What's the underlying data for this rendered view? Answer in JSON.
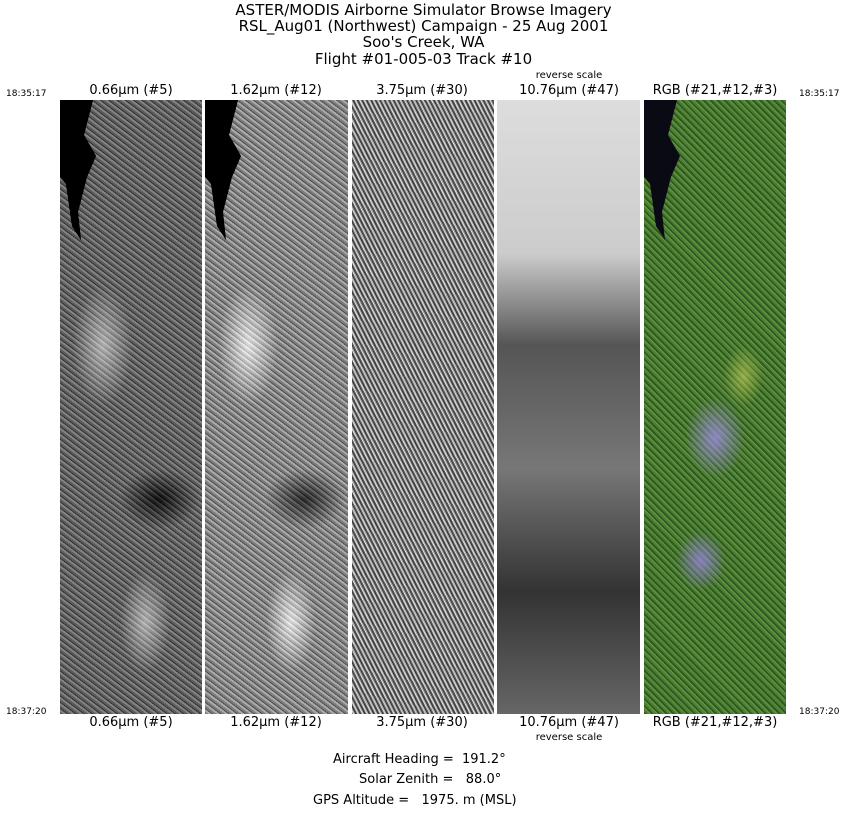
{
  "title_lines": [
    "ASTER/MODIS Airborne Simulator Browse Imagery",
    "RSL_Aug01 (Northwest) Campaign - 25 Aug 2001",
    "Soo's Creek, WA",
    "Flight #01-005-03 Track #10"
  ],
  "time_start": "18:35:17",
  "time_end": "18:37:20",
  "reverse_scale_label": "reverse scale",
  "bands": [
    {
      "label": "0.66µm (#5)"
    },
    {
      "label": "1.62µm (#12)"
    },
    {
      "label": "3.75µm (#30)"
    },
    {
      "label": "10.76µm (#47)",
      "reverse_scale": true
    },
    {
      "label": "RGB (#21,#12,#3)"
    }
  ],
  "flight_info": {
    "heading": "Aircraft Heading =  191.2°",
    "solar_zenith": "Solar Zenith =   88.0°",
    "gps_altitude": "GPS Altitude =   1975. m (MSL)"
  }
}
